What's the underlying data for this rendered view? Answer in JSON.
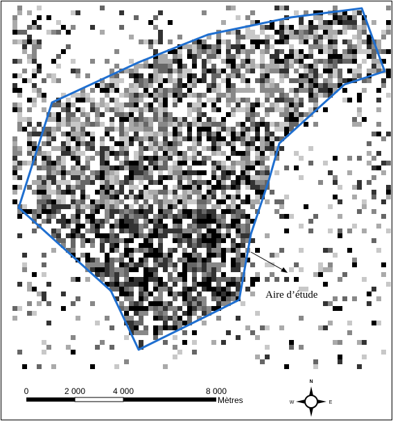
{
  "map": {
    "study_area_label": "Aire d’étude",
    "scale_bar": {
      "labels": [
        "0",
        "2 000",
        "4 000",
        "8 000"
      ],
      "unit": "Mètres"
    },
    "compass": {
      "north": "N",
      "west": "W",
      "east": "E"
    }
  }
}
